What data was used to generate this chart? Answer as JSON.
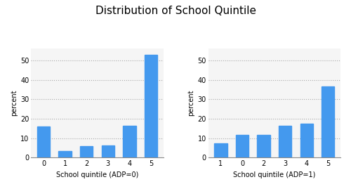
{
  "title": "Distribution of School Quintile",
  "left": {
    "categories": [
      "0",
      "1",
      "2",
      "3",
      "4",
      "5"
    ],
    "values": [
      16.0,
      3.2,
      6.0,
      6.3,
      16.5,
      52.8
    ],
    "xlabel": "School quintile (ADP=0)",
    "ylabel": "percent",
    "ylim": [
      0,
      56
    ],
    "yticks": [
      0,
      10,
      20,
      30,
      40,
      50
    ]
  },
  "right": {
    "categories": [
      "1",
      "0",
      "2",
      "3",
      "4",
      "5"
    ],
    "values": [
      7.3,
      11.5,
      11.5,
      16.2,
      17.3,
      36.5
    ],
    "xlabel": "School quintile (ADP=1)",
    "ylabel": "percent",
    "ylim": [
      0,
      56
    ],
    "yticks": [
      0,
      10,
      20,
      30,
      40,
      50
    ]
  },
  "bar_color": "#4499ee",
  "title_fontsize": 11,
  "label_fontsize": 7,
  "tick_fontsize": 7,
  "ylabel_fontsize": 7,
  "grid_color": "#aaaaaa",
  "grid_linestyle": ":",
  "grid_alpha": 1.0,
  "bg_color": "#f5f5f5"
}
